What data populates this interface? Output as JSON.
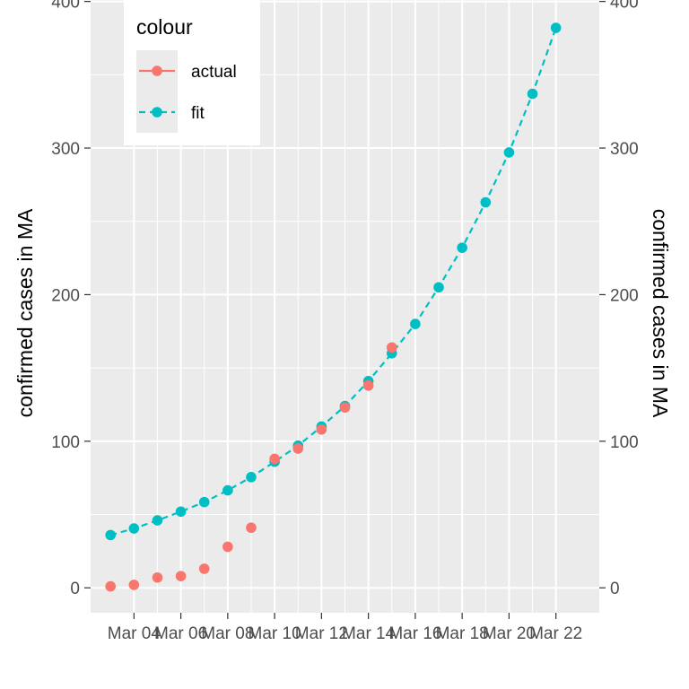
{
  "chart_data": {
    "type": "line",
    "ylabel": "confirmed cases in MA",
    "ylabel_right": "confirmed cases in MA",
    "ylim": [
      -17,
      401
    ],
    "yticks": [
      0,
      100,
      200,
      300,
      400
    ],
    "x_ticks": [
      "Mar 04",
      "Mar 06",
      "Mar 08",
      "Mar 10",
      "Mar 12",
      "Mar 14",
      "Mar 16",
      "Mar 18",
      "Mar 20",
      "Mar 22"
    ],
    "x_tick_days": [
      4,
      6,
      8,
      10,
      12,
      14,
      16,
      18,
      20,
      22
    ],
    "xlim_days": [
      2.15,
      23.85
    ],
    "grid": true,
    "legend": {
      "title": "colour",
      "placement": "top-left",
      "entries": [
        {
          "label": "actual",
          "color": "#F8766D",
          "line": "solid"
        },
        {
          "label": "fit",
          "color": "#00BFC4",
          "line": "dashed"
        }
      ]
    },
    "series": [
      {
        "name": "actual",
        "color": "#F8766D",
        "marker": "point",
        "x_days": [
          3,
          4,
          5,
          6,
          7,
          8,
          9,
          10,
          11,
          12,
          13,
          14,
          15
        ],
        "values": [
          1,
          2,
          7,
          8,
          13,
          28,
          41,
          88,
          95,
          108,
          123,
          138,
          164
        ]
      },
      {
        "name": "fit",
        "color": "#00BFC4",
        "marker": "point+dashed-line",
        "x_days": [
          3,
          4,
          5,
          6,
          7,
          8,
          9,
          10,
          11,
          12,
          13,
          14,
          15,
          16,
          17,
          18,
          19,
          20,
          21,
          22
        ],
        "values": [
          36,
          40.5,
          46,
          52,
          58.5,
          66.5,
          75.5,
          86,
          97,
          110,
          124,
          141,
          160,
          180,
          205,
          232,
          263,
          297,
          337,
          382
        ]
      }
    ]
  }
}
